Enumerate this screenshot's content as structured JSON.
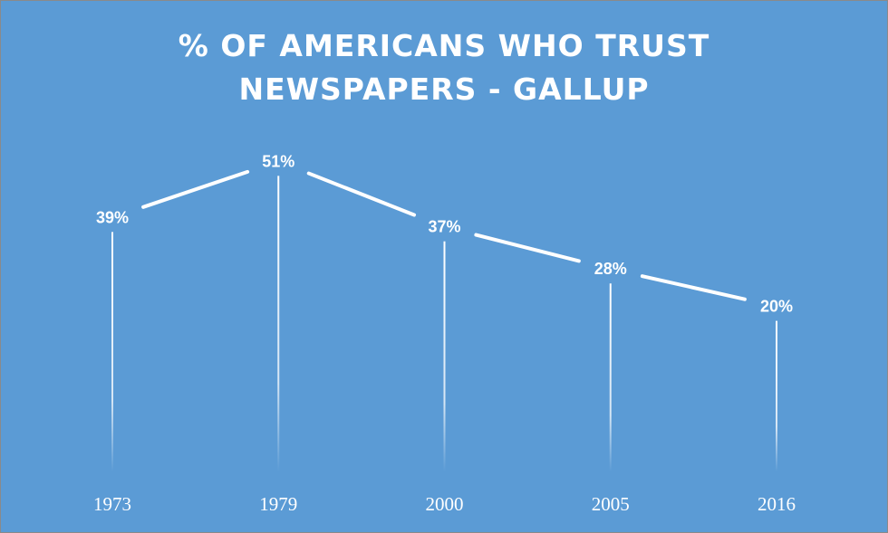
{
  "chart_data": {
    "type": "line",
    "title_lines": [
      "% OF AMERICANS WHO TRUST",
      "NEWSPAPERS - GALLUP"
    ],
    "categories": [
      "1973",
      "1979",
      "2000",
      "2005",
      "2016"
    ],
    "values": [
      39,
      51,
      37,
      28,
      20
    ],
    "data_labels": [
      "39%",
      "51%",
      "37%",
      "28%",
      "20%"
    ],
    "xlabel": "",
    "ylabel": "",
    "grid": false,
    "legend": "none",
    "drop_lines": true,
    "colors": {
      "background": "#5b9bd5",
      "line": "#ffffff",
      "text": "#ffffff"
    }
  }
}
